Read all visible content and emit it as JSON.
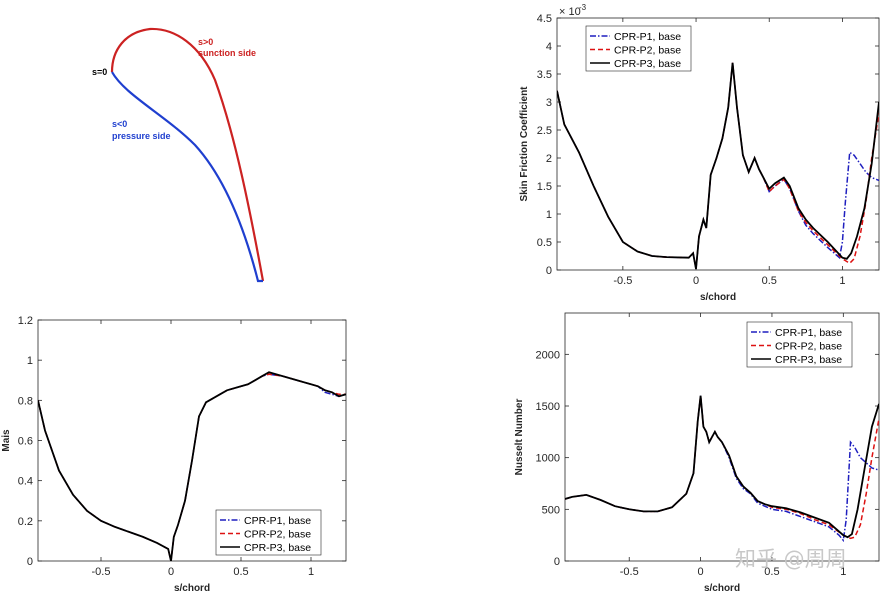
{
  "colors": {
    "p1": "#1f1fbf",
    "p2": "#dd1111",
    "p3": "#000000",
    "suction": "#cc2222",
    "pressure": "#1f3fcf"
  },
  "airfoil": {
    "s0_label": "s=0",
    "suction_label_1": "s>0",
    "suction_label_2": "sunction side",
    "pressure_label_1": "s<0",
    "pressure_label_2": "pressure side"
  },
  "chart_data": [
    {
      "id": "cf",
      "type": "line",
      "title": "",
      "xlabel": "s/chord",
      "ylabel": "Skin Friction Coefficient",
      "exponent_label": "× 10",
      "exponent_power": "-3",
      "xlim": [
        -0.95,
        1.25
      ],
      "ylim": [
        0,
        4.5
      ],
      "xticks": [
        -0.5,
        0,
        0.5,
        1
      ],
      "xtick_labels": [
        "-0.5",
        "0",
        "0.5",
        "1"
      ],
      "yticks": [
        0,
        0.5,
        1,
        1.5,
        2,
        2.5,
        3,
        3.5,
        4,
        4.5
      ],
      "ytick_labels": [
        "0",
        "0.5",
        "1",
        "1.5",
        "2",
        "2.5",
        "3",
        "3.5",
        "4",
        "4.5"
      ],
      "legend": [
        "CPR-P1, base",
        "CPR-P2, base",
        "CPR-P3, base"
      ],
      "series": [
        {
          "name": "CPR-P1, base",
          "x": [
            -0.95,
            -0.9,
            -0.8,
            -0.7,
            -0.6,
            -0.5,
            -0.4,
            -0.3,
            -0.2,
            -0.05,
            -0.02,
            0.0,
            0.02,
            0.05,
            0.07,
            0.1,
            0.14,
            0.18,
            0.22,
            0.25,
            0.28,
            0.32,
            0.36,
            0.4,
            0.43,
            0.46,
            0.5,
            0.54,
            0.6,
            0.64,
            0.7,
            0.75,
            0.8,
            0.9,
            0.98,
            1.0,
            1.02,
            1.05,
            1.08,
            1.12,
            1.16,
            1.2,
            1.25
          ],
          "y": [
            3.2,
            2.6,
            2.1,
            1.5,
            0.95,
            0.5,
            0.33,
            0.25,
            0.23,
            0.22,
            0.3,
            0.02,
            0.6,
            0.9,
            0.75,
            1.7,
            2.0,
            2.35,
            2.9,
            3.7,
            2.9,
            2.05,
            1.75,
            2.0,
            1.8,
            1.65,
            1.4,
            1.5,
            1.62,
            1.45,
            1.05,
            0.8,
            0.65,
            0.4,
            0.22,
            0.5,
            1.2,
            2.1,
            2.05,
            1.9,
            1.75,
            1.65,
            1.6
          ]
        },
        {
          "name": "CPR-P2, base",
          "x": [
            -0.95,
            -0.9,
            -0.8,
            -0.7,
            -0.6,
            -0.5,
            -0.4,
            -0.3,
            -0.2,
            -0.05,
            -0.02,
            0.0,
            0.02,
            0.05,
            0.07,
            0.1,
            0.14,
            0.18,
            0.22,
            0.25,
            0.28,
            0.32,
            0.36,
            0.4,
            0.43,
            0.46,
            0.5,
            0.54,
            0.6,
            0.64,
            0.7,
            0.75,
            0.8,
            0.9,
            1.0,
            1.05,
            1.08,
            1.12,
            1.16,
            1.2,
            1.25
          ],
          "y": [
            3.2,
            2.6,
            2.1,
            1.5,
            0.95,
            0.5,
            0.33,
            0.25,
            0.23,
            0.22,
            0.3,
            0.02,
            0.6,
            0.9,
            0.75,
            1.7,
            2.0,
            2.35,
            2.9,
            3.7,
            2.9,
            2.05,
            1.75,
            2.0,
            1.8,
            1.65,
            1.4,
            1.5,
            1.62,
            1.45,
            1.05,
            0.85,
            0.7,
            0.45,
            0.2,
            0.12,
            0.2,
            0.6,
            1.2,
            2.0,
            2.8
          ]
        },
        {
          "name": "CPR-P3, base",
          "x": [
            -0.95,
            -0.9,
            -0.8,
            -0.7,
            -0.6,
            -0.5,
            -0.4,
            -0.3,
            -0.2,
            -0.05,
            -0.02,
            0.0,
            0.02,
            0.05,
            0.07,
            0.1,
            0.14,
            0.18,
            0.22,
            0.25,
            0.28,
            0.32,
            0.36,
            0.4,
            0.43,
            0.46,
            0.5,
            0.54,
            0.6,
            0.64,
            0.7,
            0.75,
            0.8,
            0.9,
            1.0,
            1.03,
            1.06,
            1.1,
            1.15,
            1.2,
            1.25
          ],
          "y": [
            3.2,
            2.6,
            2.1,
            1.5,
            0.95,
            0.5,
            0.33,
            0.25,
            0.23,
            0.22,
            0.3,
            0.02,
            0.6,
            0.9,
            0.75,
            1.7,
            2.0,
            2.35,
            2.9,
            3.7,
            2.9,
            2.05,
            1.75,
            2.0,
            1.8,
            1.65,
            1.45,
            1.55,
            1.65,
            1.5,
            1.1,
            0.9,
            0.75,
            0.5,
            0.22,
            0.2,
            0.3,
            0.6,
            1.1,
            1.9,
            3.0
          ]
        }
      ]
    },
    {
      "id": "mais",
      "type": "line",
      "title": "",
      "xlabel": "s/chord",
      "ylabel": "Mais",
      "xlim": [
        -0.95,
        1.25
      ],
      "ylim": [
        0,
        1.2
      ],
      "xticks": [
        -0.5,
        0,
        0.5,
        1
      ],
      "xtick_labels": [
        "-0.5",
        "0",
        "0.5",
        "1"
      ],
      "yticks": [
        0,
        0.2,
        0.4,
        0.6,
        0.8,
        1,
        1.2
      ],
      "ytick_labels": [
        "0",
        "0.2",
        "0.4",
        "0.6",
        "0.8",
        "1",
        "1.2"
      ],
      "legend": [
        "CPR-P1, base",
        "CPR-P2, base",
        "CPR-P3, base"
      ],
      "series": [
        {
          "name": "CPR-P1, base",
          "x": [
            -0.95,
            -0.9,
            -0.8,
            -0.7,
            -0.6,
            -0.5,
            -0.4,
            -0.3,
            -0.2,
            -0.1,
            -0.02,
            0.0,
            0.02,
            0.05,
            0.1,
            0.15,
            0.2,
            0.25,
            0.3,
            0.35,
            0.4,
            0.5,
            0.55,
            0.6,
            0.65,
            0.7,
            0.8,
            0.9,
            1.0,
            1.05,
            1.1,
            1.15,
            1.2,
            1.25
          ],
          "y": [
            0.8,
            0.65,
            0.45,
            0.33,
            0.25,
            0.2,
            0.17,
            0.145,
            0.12,
            0.09,
            0.06,
            0.0,
            0.12,
            0.18,
            0.3,
            0.5,
            0.72,
            0.79,
            0.81,
            0.83,
            0.85,
            0.87,
            0.88,
            0.9,
            0.92,
            0.93,
            0.92,
            0.9,
            0.88,
            0.87,
            0.84,
            0.83,
            0.82,
            0.83
          ]
        },
        {
          "name": "CPR-P2, base",
          "x": [
            -0.95,
            -0.9,
            -0.8,
            -0.7,
            -0.6,
            -0.5,
            -0.4,
            -0.3,
            -0.2,
            -0.1,
            -0.02,
            0.0,
            0.02,
            0.05,
            0.1,
            0.15,
            0.2,
            0.25,
            0.3,
            0.35,
            0.4,
            0.5,
            0.55,
            0.6,
            0.65,
            0.7,
            0.8,
            0.9,
            1.0,
            1.05,
            1.1,
            1.15,
            1.2,
            1.25
          ],
          "y": [
            0.8,
            0.65,
            0.45,
            0.33,
            0.25,
            0.2,
            0.17,
            0.145,
            0.12,
            0.09,
            0.06,
            0.0,
            0.12,
            0.18,
            0.3,
            0.5,
            0.72,
            0.79,
            0.81,
            0.83,
            0.85,
            0.87,
            0.88,
            0.9,
            0.92,
            0.93,
            0.92,
            0.9,
            0.88,
            0.87,
            0.85,
            0.84,
            0.83,
            0.83
          ]
        },
        {
          "name": "CPR-P3, base",
          "x": [
            -0.95,
            -0.9,
            -0.8,
            -0.7,
            -0.6,
            -0.5,
            -0.4,
            -0.3,
            -0.2,
            -0.1,
            -0.02,
            0.0,
            0.02,
            0.05,
            0.1,
            0.15,
            0.2,
            0.25,
            0.3,
            0.35,
            0.4,
            0.5,
            0.55,
            0.6,
            0.65,
            0.7,
            0.8,
            0.9,
            1.0,
            1.05,
            1.1,
            1.15,
            1.2,
            1.25
          ],
          "y": [
            0.8,
            0.65,
            0.45,
            0.33,
            0.25,
            0.2,
            0.17,
            0.145,
            0.12,
            0.09,
            0.06,
            0.0,
            0.12,
            0.18,
            0.3,
            0.5,
            0.72,
            0.79,
            0.81,
            0.83,
            0.85,
            0.87,
            0.88,
            0.9,
            0.92,
            0.94,
            0.92,
            0.9,
            0.88,
            0.87,
            0.85,
            0.84,
            0.82,
            0.83
          ]
        }
      ]
    },
    {
      "id": "nu",
      "type": "line",
      "title": "",
      "xlabel": "s/chord",
      "ylabel": "Nusselt Number",
      "xlim": [
        -0.95,
        1.25
      ],
      "ylim": [
        0,
        2400
      ],
      "xticks": [
        -0.5,
        0,
        0.5,
        1
      ],
      "xtick_labels": [
        "-0.5",
        "0",
        "0.5",
        "1"
      ],
      "yticks": [
        0,
        500,
        1000,
        1500,
        2000
      ],
      "ytick_labels": [
        "0",
        "500",
        "1000",
        "1500",
        "2000"
      ],
      "legend": [
        "CPR-P1, base",
        "CPR-P2, base",
        "CPR-P3, base"
      ],
      "series": [
        {
          "name": "CPR-P1, base",
          "x": [
            -0.95,
            -0.9,
            -0.8,
            -0.7,
            -0.6,
            -0.5,
            -0.4,
            -0.3,
            -0.2,
            -0.1,
            -0.05,
            -0.02,
            0.0,
            0.02,
            0.04,
            0.06,
            0.08,
            0.1,
            0.12,
            0.15,
            0.2,
            0.25,
            0.3,
            0.35,
            0.4,
            0.45,
            0.5,
            0.6,
            0.7,
            0.8,
            0.9,
            0.97,
            1.0,
            1.02,
            1.05,
            1.08,
            1.12,
            1.16,
            1.2,
            1.25
          ],
          "y": [
            600,
            620,
            640,
            590,
            530,
            500,
            480,
            480,
            520,
            650,
            850,
            1350,
            1600,
            1300,
            1250,
            1150,
            1200,
            1250,
            1200,
            1150,
            1000,
            800,
            700,
            650,
            560,
            530,
            500,
            480,
            430,
            380,
            330,
            250,
            200,
            400,
            1150,
            1100,
            1000,
            950,
            900,
            880
          ]
        },
        {
          "name": "CPR-P2, base",
          "x": [
            -0.95,
            -0.9,
            -0.8,
            -0.7,
            -0.6,
            -0.5,
            -0.4,
            -0.3,
            -0.2,
            -0.1,
            -0.05,
            -0.02,
            0.0,
            0.02,
            0.04,
            0.06,
            0.08,
            0.1,
            0.12,
            0.15,
            0.2,
            0.25,
            0.3,
            0.35,
            0.4,
            0.45,
            0.5,
            0.6,
            0.7,
            0.8,
            0.9,
            1.0,
            1.05,
            1.08,
            1.12,
            1.16,
            1.2,
            1.25
          ],
          "y": [
            600,
            620,
            640,
            590,
            530,
            500,
            480,
            480,
            520,
            650,
            850,
            1350,
            1600,
            1300,
            1250,
            1150,
            1200,
            1250,
            1200,
            1150,
            1020,
            820,
            720,
            660,
            580,
            550,
            520,
            500,
            460,
            400,
            350,
            250,
            220,
            230,
            350,
            650,
            1000,
            1380
          ]
        },
        {
          "name": "CPR-P3, base",
          "x": [
            -0.95,
            -0.9,
            -0.8,
            -0.7,
            -0.6,
            -0.5,
            -0.4,
            -0.3,
            -0.2,
            -0.1,
            -0.05,
            -0.02,
            0.0,
            0.02,
            0.04,
            0.06,
            0.08,
            0.1,
            0.12,
            0.15,
            0.2,
            0.25,
            0.3,
            0.35,
            0.4,
            0.45,
            0.5,
            0.6,
            0.7,
            0.8,
            0.9,
            1.0,
            1.03,
            1.06,
            1.1,
            1.15,
            1.2,
            1.25
          ],
          "y": [
            600,
            620,
            640,
            590,
            530,
            500,
            480,
            480,
            520,
            650,
            850,
            1350,
            1600,
            1300,
            1250,
            1150,
            1200,
            1250,
            1200,
            1150,
            1020,
            820,
            720,
            660,
            580,
            550,
            530,
            510,
            470,
            420,
            370,
            250,
            230,
            260,
            500,
            900,
            1300,
            1520
          ]
        }
      ]
    }
  ],
  "watermark": "知乎 @周周"
}
